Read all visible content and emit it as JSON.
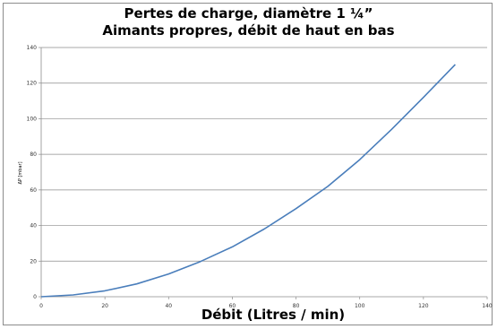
{
  "chart_data": {
    "type": "line",
    "title_lines": [
      "Pertes de charge, diamètre 1 ¼”",
      "Aimants propres, débit de haut en bas"
    ],
    "xlabel": "Débit (Litres / min)",
    "ylabel": "ΔP [mbar]",
    "xlim": [
      0,
      140
    ],
    "ylim": [
      0,
      140
    ],
    "x_ticks": [
      0,
      20,
      40,
      60,
      80,
      100,
      120,
      140
    ],
    "y_ticks": [
      0,
      20,
      40,
      60,
      80,
      100,
      120,
      140
    ],
    "grid": "horizontal",
    "legend": "none",
    "series": [
      {
        "color": "#4a7ebb",
        "x": [
          0,
          10,
          20,
          30,
          40,
          50,
          60,
          70,
          80,
          90,
          100,
          110,
          120,
          130
        ],
        "y": [
          0,
          1,
          3.3,
          7.2,
          12.8,
          19.8,
          28,
          38,
          49.5,
          62,
          77,
          94,
          112,
          130.5
        ]
      }
    ]
  }
}
